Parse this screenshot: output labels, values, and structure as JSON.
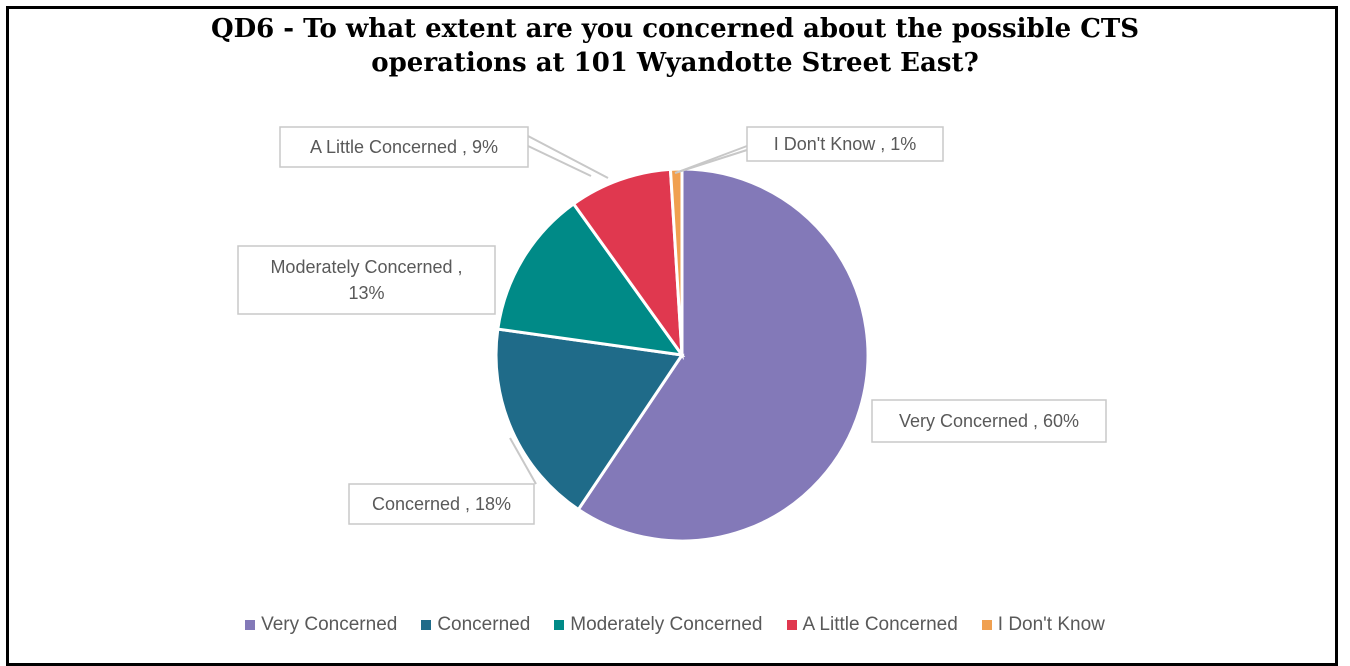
{
  "chart_data": {
    "type": "pie",
    "title_lines": [
      "QD6 - To what extent are you concerned about the possible CTS",
      "operations at 101 Wyandotte Street East?"
    ],
    "slices": [
      {
        "name": "Very Concerned",
        "value": 60,
        "label": "Very Concerned , 60%",
        "color": "#8379b8"
      },
      {
        "name": "Concerned",
        "value": 18,
        "label": "Concerned , 18%",
        "color": "#1f6b89"
      },
      {
        "name": "Moderately Concerned",
        "value": 13,
        "label_lines": [
          "Moderately Concerned ,",
          "13%"
        ],
        "color": "#008a87"
      },
      {
        "name": "A Little Concerned",
        "value": 9,
        "label": "A Little Concerned , 9%",
        "color": "#e0384f"
      },
      {
        "name": "I Don't Know",
        "value": 1,
        "label": "I Don't Know , 1%",
        "color": "#f0a050"
      }
    ],
    "legend_position": "bottom",
    "start_angle": "12 o'clock",
    "direction": "clockwise"
  }
}
